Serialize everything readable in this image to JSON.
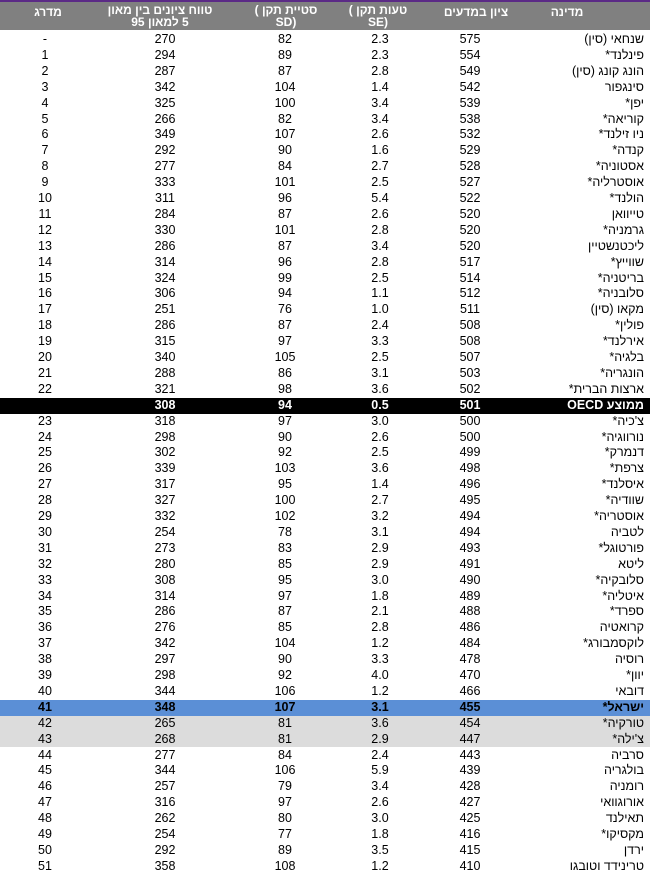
{
  "header": {
    "country": "מדינה",
    "score": "ציון במדעים",
    "se": "טעות תקן )\n(SE",
    "sd": "סטיית תקן )\n(SD",
    "range": "טווח ציונים בין מאון\n5 למאון 95",
    "rank": "מדרג"
  },
  "rows": [
    {
      "country": "שנחאי (סין)",
      "score": "575",
      "se": "2.3",
      "sd": "82",
      "range": "270",
      "rank": "-",
      "style": ""
    },
    {
      "country": "פינלנד*",
      "score": "554",
      "se": "2.3",
      "sd": "89",
      "range": "294",
      "rank": "1",
      "style": ""
    },
    {
      "country": "הונג קונג (סין)",
      "score": "549",
      "se": "2.8",
      "sd": "87",
      "range": "287",
      "rank": "2",
      "style": ""
    },
    {
      "country": "סינגפור",
      "score": "542",
      "se": "1.4",
      "sd": "104",
      "range": "342",
      "rank": "3",
      "style": ""
    },
    {
      "country": "יפן*",
      "score": "539",
      "se": "3.4",
      "sd": "100",
      "range": "325",
      "rank": "4",
      "style": ""
    },
    {
      "country": "קוריאה*",
      "score": "538",
      "se": "3.4",
      "sd": "82",
      "range": "266",
      "rank": "5",
      "style": ""
    },
    {
      "country": "ניו זילנד*",
      "score": "532",
      "se": "2.6",
      "sd": "107",
      "range": "349",
      "rank": "6",
      "style": ""
    },
    {
      "country": "קנדה*",
      "score": "529",
      "se": "1.6",
      "sd": "90",
      "range": "292",
      "rank": "7",
      "style": ""
    },
    {
      "country": "אסטוניה*",
      "score": "528",
      "se": "2.7",
      "sd": "84",
      "range": "277",
      "rank": "8",
      "style": ""
    },
    {
      "country": "אוסטרליה*",
      "score": "527",
      "se": "2.5",
      "sd": "101",
      "range": "333",
      "rank": "9",
      "style": ""
    },
    {
      "country": "הולנד*",
      "score": "522",
      "se": "5.4",
      "sd": "96",
      "range": "311",
      "rank": "10",
      "style": ""
    },
    {
      "country": "טייוואן",
      "score": "520",
      "se": "2.6",
      "sd": "87",
      "range": "284",
      "rank": "11",
      "style": ""
    },
    {
      "country": "גרמניה*",
      "score": "520",
      "se": "2.8",
      "sd": "101",
      "range": "330",
      "rank": "12",
      "style": ""
    },
    {
      "country": "ליכטנשטיין",
      "score": "520",
      "se": "3.4",
      "sd": "87",
      "range": "286",
      "rank": "13",
      "style": ""
    },
    {
      "country": "שווייץ*",
      "score": "517",
      "se": "2.8",
      "sd": "96",
      "range": "314",
      "rank": "14",
      "style": ""
    },
    {
      "country": "בריטניה*",
      "score": "514",
      "se": "2.5",
      "sd": "99",
      "range": "324",
      "rank": "15",
      "style": ""
    },
    {
      "country": "סלובניה*",
      "score": "512",
      "se": "1.1",
      "sd": "94",
      "range": "306",
      "rank": "16",
      "style": ""
    },
    {
      "country": "מקאו (סין)",
      "score": "511",
      "se": "1.0",
      "sd": "76",
      "range": "251",
      "rank": "17",
      "style": ""
    },
    {
      "country": "פולין*",
      "score": "508",
      "se": "2.4",
      "sd": "87",
      "range": "286",
      "rank": "18",
      "style": ""
    },
    {
      "country": "אירלנד*",
      "score": "508",
      "se": "3.3",
      "sd": "97",
      "range": "315",
      "rank": "19",
      "style": ""
    },
    {
      "country": "בלגיה*",
      "score": "507",
      "se": "2.5",
      "sd": "105",
      "range": "340",
      "rank": "20",
      "style": ""
    },
    {
      "country": "הונגריה*",
      "score": "503",
      "se": "3.1",
      "sd": "86",
      "range": "288",
      "rank": "21",
      "style": ""
    },
    {
      "country": "ארצות הברית*",
      "score": "502",
      "se": "3.6",
      "sd": "98",
      "range": "321",
      "rank": "22",
      "style": ""
    },
    {
      "country": "ממוצע OECD",
      "score": "501",
      "se": "0.5",
      "sd": "94",
      "range": "308",
      "rank": "",
      "style": "oecd"
    },
    {
      "country": "צ'כיה*",
      "score": "500",
      "se": "3.0",
      "sd": "97",
      "range": "318",
      "rank": "23",
      "style": ""
    },
    {
      "country": "נורווגיה*",
      "score": "500",
      "se": "2.6",
      "sd": "90",
      "range": "298",
      "rank": "24",
      "style": ""
    },
    {
      "country": "דנמרק*",
      "score": "499",
      "se": "2.5",
      "sd": "92",
      "range": "302",
      "rank": "25",
      "style": ""
    },
    {
      "country": "צרפת*",
      "score": "498",
      "se": "3.6",
      "sd": "103",
      "range": "339",
      "rank": "26",
      "style": ""
    },
    {
      "country": "איסלנד*",
      "score": "496",
      "se": "1.4",
      "sd": "95",
      "range": "317",
      "rank": "27",
      "style": ""
    },
    {
      "country": "שוודיה*",
      "score": "495",
      "se": "2.7",
      "sd": "100",
      "range": "327",
      "rank": "28",
      "style": ""
    },
    {
      "country": "אוסטריה*",
      "score": "494",
      "se": "3.2",
      "sd": "102",
      "range": "332",
      "rank": "29",
      "style": ""
    },
    {
      "country": "לטביה",
      "score": "494",
      "se": "3.1",
      "sd": "78",
      "range": "254",
      "rank": "30",
      "style": ""
    },
    {
      "country": "פורטוגל*",
      "score": "493",
      "se": "2.9",
      "sd": "83",
      "range": "273",
      "rank": "31",
      "style": ""
    },
    {
      "country": "ליטא",
      "score": "491",
      "se": "2.9",
      "sd": "85",
      "range": "280",
      "rank": "32",
      "style": ""
    },
    {
      "country": "סלובקיה*",
      "score": "490",
      "se": "3.0",
      "sd": "95",
      "range": "308",
      "rank": "33",
      "style": ""
    },
    {
      "country": "איטליה*",
      "score": "489",
      "se": "1.8",
      "sd": "97",
      "range": "314",
      "rank": "34",
      "style": ""
    },
    {
      "country": "ספרד*",
      "score": "488",
      "se": "2.1",
      "sd": "87",
      "range": "286",
      "rank": "35",
      "style": ""
    },
    {
      "country": "קרואטיה",
      "score": "486",
      "se": "2.8",
      "sd": "85",
      "range": "276",
      "rank": "36",
      "style": ""
    },
    {
      "country": "לוקסמבורג*",
      "score": "484",
      "se": "1.2",
      "sd": "104",
      "range": "342",
      "rank": "37",
      "style": ""
    },
    {
      "country": "רוסיה",
      "score": "478",
      "se": "3.3",
      "sd": "90",
      "range": "297",
      "rank": "38",
      "style": ""
    },
    {
      "country": "יוון*",
      "score": "470",
      "se": "4.0",
      "sd": "92",
      "range": "298",
      "rank": "39",
      "style": ""
    },
    {
      "country": "דובאי",
      "score": "466",
      "se": "1.2",
      "sd": "106",
      "range": "344",
      "rank": "40",
      "style": ""
    },
    {
      "country": "ישראל*",
      "score": "455",
      "se": "3.1",
      "sd": "107",
      "range": "348",
      "rank": "41",
      "style": "israel"
    },
    {
      "country": "טורקיה*",
      "score": "454",
      "se": "3.6",
      "sd": "81",
      "range": "265",
      "rank": "42",
      "style": "grey"
    },
    {
      "country": "צ'ילה*",
      "score": "447",
      "se": "2.9",
      "sd": "81",
      "range": "268",
      "rank": "43",
      "style": "grey"
    },
    {
      "country": "סרביה",
      "score": "443",
      "se": "2.4",
      "sd": "84",
      "range": "277",
      "rank": "44",
      "style": ""
    },
    {
      "country": "בולגריה",
      "score": "439",
      "se": "5.9",
      "sd": "106",
      "range": "344",
      "rank": "45",
      "style": ""
    },
    {
      "country": "רומניה",
      "score": "428",
      "se": "3.4",
      "sd": "79",
      "range": "257",
      "rank": "46",
      "style": ""
    },
    {
      "country": "אורוגוואי",
      "score": "427",
      "se": "2.6",
      "sd": "97",
      "range": "316",
      "rank": "47",
      "style": ""
    },
    {
      "country": "תאילנד",
      "score": "425",
      "se": "3.0",
      "sd": "80",
      "range": "262",
      "rank": "48",
      "style": ""
    },
    {
      "country": "מקסיקו*",
      "score": "416",
      "se": "1.8",
      "sd": "77",
      "range": "254",
      "rank": "49",
      "style": ""
    },
    {
      "country": "ירדן",
      "score": "415",
      "se": "3.5",
      "sd": "89",
      "range": "292",
      "rank": "50",
      "style": ""
    },
    {
      "country": "טרינידד וטובגו",
      "score": "410",
      "se": "1.2",
      "sd": "108",
      "range": "358",
      "rank": "51",
      "style": ""
    }
  ]
}
